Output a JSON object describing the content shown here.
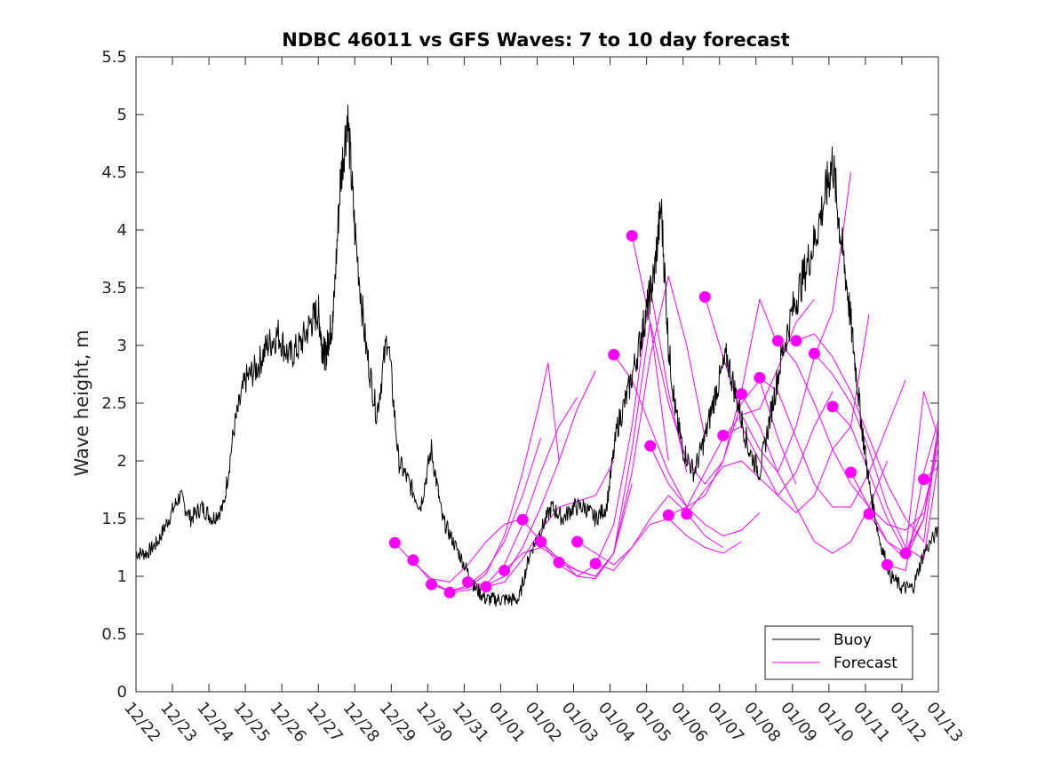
{
  "chart_data": {
    "type": "line",
    "title": "NDBC 46011 vs GFS Waves: 7 to 10 day forecast",
    "xlabel": "",
    "ylabel": "Wave height, m",
    "xlim": [
      0,
      22
    ],
    "ylim": [
      0,
      5.5
    ],
    "x_ticks": [
      "12/22",
      "12/23",
      "12/24",
      "12/25",
      "12/26",
      "12/27",
      "12/28",
      "12/29",
      "12/30",
      "12/31",
      "01/01",
      "01/02",
      "01/03",
      "01/04",
      "01/05",
      "01/06",
      "01/07",
      "01/08",
      "01/09",
      "01/10",
      "01/11",
      "01/12",
      "01/13"
    ],
    "y_ticks": [
      0,
      0.5,
      1,
      1.5,
      2,
      2.5,
      3,
      3.5,
      4,
      4.5,
      5,
      5.5
    ],
    "legend": {
      "position": "bottom-right",
      "entries": [
        "Buoy",
        "Forecast"
      ]
    },
    "colors": {
      "buoy": "#000000",
      "forecast": "#ff00ff",
      "axis": "#262626"
    },
    "buoy": {
      "name": "Buoy",
      "x": [
        0,
        0.3,
        0.6,
        0.9,
        1.2,
        1.5,
        1.8,
        2.1,
        2.4,
        2.7,
        3.0,
        3.3,
        3.6,
        3.9,
        4.2,
        4.5,
        4.8,
        5.0,
        5.1,
        5.2,
        5.3,
        5.4,
        5.6,
        5.8,
        6.0,
        6.3,
        6.6,
        6.9,
        7.2,
        7.5,
        7.8,
        8.1,
        8.4,
        8.7,
        9.0,
        9.3,
        9.6,
        9.9,
        10.2,
        10.5,
        10.8,
        11.1,
        11.4,
        11.7,
        12.0,
        12.3,
        12.6,
        12.9,
        13.2,
        13.5,
        13.8,
        14.0,
        14.2,
        14.4,
        14.6,
        14.8,
        15.0,
        15.3,
        15.6,
        15.9,
        16.2,
        16.5,
        16.8,
        17.1,
        17.4,
        17.7,
        18.0,
        18.3,
        18.6,
        18.9,
        19.1,
        19.3,
        19.5,
        19.7,
        19.9,
        20.1,
        20.4,
        20.7,
        21.0,
        21.3,
        21.6,
        22.0
      ],
      "y": [
        1.2,
        1.2,
        1.3,
        1.5,
        1.7,
        1.5,
        1.6,
        1.5,
        1.6,
        2.3,
        2.7,
        2.8,
        3.0,
        3.1,
        2.9,
        3.0,
        3.2,
        3.3,
        3.0,
        2.9,
        3.1,
        3.2,
        4.4,
        5.0,
        4.0,
        3.0,
        2.4,
        3.1,
        2.0,
        1.8,
        1.6,
        2.1,
        1.5,
        1.3,
        1.1,
        0.9,
        0.8,
        0.8,
        0.8,
        0.8,
        1.2,
        1.4,
        1.6,
        1.5,
        1.6,
        1.6,
        1.5,
        1.6,
        2.3,
        2.6,
        3.0,
        3.3,
        3.6,
        4.2,
        3.0,
        2.4,
        2.1,
        1.9,
        2.2,
        2.6,
        2.9,
        2.5,
        2.1,
        1.9,
        2.4,
        2.9,
        3.3,
        3.6,
        3.9,
        4.3,
        4.6,
        4.0,
        3.5,
        2.9,
        2.3,
        1.8,
        1.3,
        1.0,
        0.9,
        0.9,
        1.2,
        1.4
      ]
    },
    "forecast_points": {
      "name": "Forecast",
      "x": [
        7.1,
        7.6,
        8.1,
        8.6,
        9.1,
        9.6,
        10.1,
        10.6,
        11.1,
        11.6,
        12.1,
        12.6,
        13.1,
        13.6,
        14.1,
        14.6,
        15.1,
        15.6,
        16.1,
        16.6,
        17.1,
        17.6,
        18.1,
        18.6,
        19.1,
        19.6,
        20.1,
        20.6,
        21.1,
        21.6
      ],
      "y": [
        1.29,
        1.14,
        0.93,
        0.86,
        0.95,
        0.91,
        1.05,
        1.49,
        1.3,
        1.12,
        1.3,
        1.11,
        2.92,
        3.95,
        2.13,
        1.53,
        1.54,
        3.42,
        2.22,
        2.58,
        2.72,
        3.04,
        3.04,
        2.93,
        2.47,
        1.9,
        1.54,
        1.1,
        1.2,
        1.84
      ]
    },
    "forecast_runs": [
      {
        "x": [
          7.1,
          7.6,
          8.1,
          8.6,
          9.1,
          9.6,
          10.1,
          10.6
        ],
        "y": [
          1.29,
          1.12,
          0.98,
          0.95,
          1.1,
          1.3,
          1.45,
          1.5
        ]
      },
      {
        "x": [
          7.6,
          8.1,
          8.6,
          9.1,
          9.6,
          10.1,
          10.6,
          11.1
        ],
        "y": [
          1.14,
          0.95,
          0.87,
          0.92,
          1.05,
          1.3,
          1.7,
          2.2
        ]
      },
      {
        "x": [
          8.1,
          8.6,
          9.1,
          9.6,
          10.1,
          10.6,
          11.1,
          11.3,
          11.6
        ],
        "y": [
          0.93,
          0.87,
          0.9,
          1.02,
          1.35,
          1.9,
          2.55,
          2.85,
          2.0
        ]
      },
      {
        "x": [
          8.6,
          9.1,
          9.6,
          10.1,
          10.6,
          11.1,
          11.6,
          12.1
        ],
        "y": [
          0.86,
          0.88,
          0.93,
          1.1,
          1.45,
          1.9,
          2.3,
          2.55
        ]
      },
      {
        "x": [
          9.1,
          9.6,
          10.1,
          10.6,
          11.1,
          11.6,
          12.1,
          12.6
        ],
        "y": [
          0.95,
          0.92,
          1.0,
          1.25,
          1.6,
          2.0,
          2.45,
          2.78
        ]
      },
      {
        "x": [
          9.6,
          10.1,
          10.6,
          11.1,
          11.6,
          12.1,
          12.6,
          13.1
        ],
        "y": [
          0.91,
          0.95,
          1.15,
          1.4,
          1.6,
          1.65,
          1.7,
          2.0
        ]
      },
      {
        "x": [
          10.1,
          10.6,
          11.1,
          11.6,
          12.1,
          12.6,
          13.1,
          13.6
        ],
        "y": [
          1.05,
          1.2,
          1.25,
          1.15,
          1.05,
          1.0,
          1.2,
          1.8
        ]
      },
      {
        "x": [
          10.6,
          11.1,
          11.6,
          12.1,
          12.6,
          13.1,
          13.6,
          14.1,
          14.6
        ],
        "y": [
          1.49,
          1.3,
          1.15,
          1.0,
          0.98,
          1.2,
          2.1,
          3.2,
          2.0
        ]
      },
      {
        "x": [
          11.1,
          11.6,
          12.1,
          12.6,
          13.1,
          13.6,
          14.1,
          14.6,
          15.1
        ],
        "y": [
          1.3,
          1.1,
          1.0,
          1.1,
          1.45,
          2.3,
          3.5,
          2.6,
          1.9
        ]
      },
      {
        "x": [
          11.6,
          12.1,
          12.6,
          13.1,
          13.6,
          14.1,
          14.6,
          15.1,
          15.6
        ],
        "y": [
          1.12,
          1.05,
          1.0,
          1.2,
          1.9,
          2.9,
          3.6,
          3.0,
          2.2
        ]
      },
      {
        "x": [
          12.1,
          12.6,
          13.1,
          13.6,
          14.1,
          14.6,
          15.1,
          15.6,
          16.1
        ],
        "y": [
          1.3,
          1.2,
          1.1,
          1.25,
          1.5,
          1.7,
          1.55,
          1.35,
          1.25
        ]
      },
      {
        "x": [
          12.6,
          13.1,
          13.6,
          14.1,
          14.6,
          15.1,
          15.6,
          16.1,
          16.6
        ],
        "y": [
          1.11,
          1.05,
          1.25,
          1.45,
          1.5,
          1.35,
          1.25,
          1.2,
          1.3
        ]
      },
      {
        "x": [
          13.1,
          13.6,
          14.1,
          14.6,
          15.1,
          15.6,
          16.1,
          16.6,
          17.1
        ],
        "y": [
          2.92,
          2.7,
          2.3,
          1.9,
          1.6,
          1.45,
          1.35,
          1.4,
          1.55
        ]
      },
      {
        "x": [
          13.6,
          14.1,
          14.6,
          15.1,
          15.6,
          16.1,
          16.6,
          17.1,
          17.6
        ],
        "y": [
          3.95,
          3.2,
          2.5,
          2.0,
          1.8,
          2.0,
          2.6,
          3.4,
          3.0
        ]
      },
      {
        "x": [
          14.1,
          14.6,
          15.1,
          15.6,
          16.1,
          16.6,
          17.1,
          17.6,
          18.1
        ],
        "y": [
          2.13,
          1.8,
          1.6,
          1.7,
          2.0,
          2.5,
          2.7,
          2.2,
          1.8
        ]
      },
      {
        "x": [
          14.6,
          15.1,
          15.6,
          16.1,
          16.6,
          17.1,
          17.6,
          18.1,
          18.6
        ],
        "y": [
          1.53,
          1.6,
          1.9,
          2.2,
          2.4,
          2.45,
          2.8,
          3.2,
          3.4
        ]
      },
      {
        "x": [
          15.1,
          15.6,
          16.1,
          16.6,
          17.1,
          17.6,
          18.1,
          18.6,
          19.1
        ],
        "y": [
          1.54,
          1.75,
          1.95,
          2.0,
          1.85,
          1.7,
          1.9,
          2.3,
          2.6
        ]
      },
      {
        "x": [
          15.6,
          16.1,
          16.6,
          17.1,
          17.6,
          18.1,
          18.6,
          19.1,
          19.6
        ],
        "y": [
          3.42,
          2.9,
          2.4,
          2.1,
          1.9,
          2.3,
          2.9,
          3.3,
          4.5
        ]
      },
      {
        "x": [
          16.1,
          16.6,
          17.1,
          17.6,
          18.1,
          18.6,
          19.1,
          19.6,
          20.1
        ],
        "y": [
          2.22,
          2.3,
          2.0,
          1.7,
          1.55,
          1.7,
          2.1,
          2.3,
          3.27
        ]
      },
      {
        "x": [
          16.6,
          17.1,
          17.6,
          18.1,
          18.6,
          19.1,
          19.6,
          20.1,
          20.6
        ],
        "y": [
          2.58,
          2.3,
          1.9,
          1.6,
          1.3,
          1.2,
          1.3,
          1.6,
          2.0
        ]
      },
      {
        "x": [
          17.1,
          17.6,
          18.1,
          18.6,
          19.1,
          19.6,
          20.1,
          20.6,
          21.1
        ],
        "y": [
          2.72,
          2.6,
          2.2,
          1.8,
          1.6,
          1.6,
          1.9,
          2.3,
          2.7
        ]
      },
      {
        "x": [
          17.6,
          18.1,
          18.6,
          19.1,
          19.6,
          20.1,
          20.6,
          21.1,
          21.6
        ],
        "y": [
          3.04,
          2.85,
          2.5,
          2.1,
          1.8,
          1.6,
          1.45,
          1.4,
          1.55
        ]
      },
      {
        "x": [
          18.1,
          18.6,
          19.1,
          19.6,
          20.1,
          20.6,
          21.1,
          21.6,
          22.0
        ],
        "y": [
          3.04,
          3.1,
          2.9,
          2.6,
          2.2,
          1.8,
          1.5,
          1.3,
          2.3
        ]
      },
      {
        "x": [
          18.6,
          19.1,
          19.6,
          20.1,
          20.6,
          21.1,
          21.6,
          22.0
        ],
        "y": [
          2.93,
          2.75,
          2.5,
          2.1,
          1.6,
          1.25,
          1.15,
          2.0
        ]
      },
      {
        "x": [
          19.1,
          19.6,
          20.1,
          20.6,
          21.1,
          21.6,
          22.0
        ],
        "y": [
          2.47,
          2.3,
          1.9,
          1.5,
          1.2,
          1.5,
          2.3
        ]
      },
      {
        "x": [
          19.6,
          20.1,
          20.6,
          21.1,
          21.6,
          22.0
        ],
        "y": [
          1.9,
          1.6,
          1.3,
          1.15,
          1.5,
          2.2
        ]
      },
      {
        "x": [
          20.1,
          20.6,
          21.1,
          21.6,
          22.0
        ],
        "y": [
          1.54,
          1.3,
          1.2,
          1.6,
          2.1
        ]
      },
      {
        "x": [
          20.6,
          21.1,
          21.6,
          22.0
        ],
        "y": [
          1.1,
          1.05,
          1.9,
          2.35
        ]
      },
      {
        "x": [
          21.1,
          21.6,
          22.0
        ],
        "y": [
          1.2,
          2.6,
          2.2
        ]
      },
      {
        "x": [
          21.6,
          22.0
        ],
        "y": [
          1.84,
          1.95
        ]
      }
    ]
  }
}
